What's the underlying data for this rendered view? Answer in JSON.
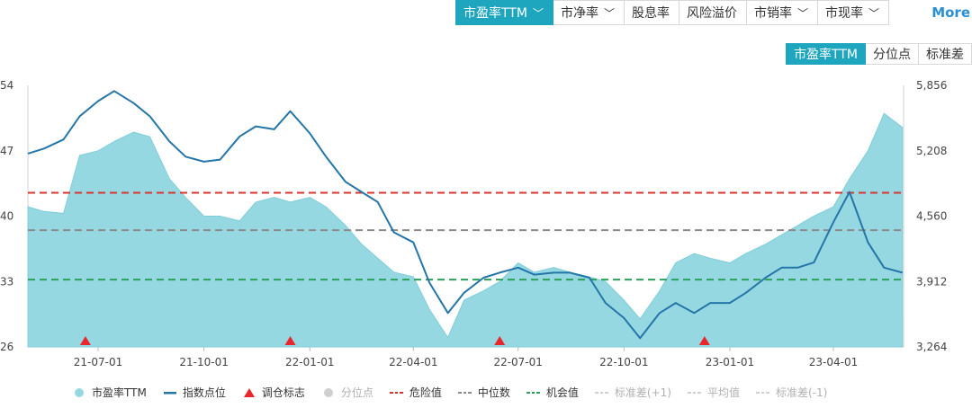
{
  "tabs": [
    {
      "label": "市盈率TTM",
      "active": true,
      "has_menu": true
    },
    {
      "label": "市净率",
      "active": false,
      "has_menu": true
    },
    {
      "label": "股息率",
      "active": false,
      "has_menu": false
    },
    {
      "label": "风险溢价",
      "active": false,
      "has_menu": false
    },
    {
      "label": "市销率",
      "active": false,
      "has_menu": true
    },
    {
      "label": "市现率",
      "active": false,
      "has_menu": true
    }
  ],
  "more_label": "More",
  "subtabs": [
    {
      "label": "市盈率TTM",
      "active": true
    },
    {
      "label": "分位点",
      "active": false
    },
    {
      "label": "标准差",
      "active": false
    }
  ],
  "colors": {
    "accent": "#1fa6bf",
    "area": "#96d8e1",
    "index_line": "#2475a8",
    "danger": "#d9352f",
    "median": "#8a8a8a",
    "opportunity": "#2aa05a",
    "marker": "#e8262b",
    "more_link": "#2b8fd6"
  },
  "legend": [
    {
      "label": "市盈率TTM",
      "symbol": "dot",
      "color": "#96d8e1",
      "dim": false
    },
    {
      "label": "指数点位",
      "symbol": "line",
      "color": "#2475a8",
      "dim": false
    },
    {
      "label": "调仓标志",
      "symbol": "triangle",
      "color": "#e8262b",
      "dim": false
    },
    {
      "label": "分位点",
      "symbol": "dot",
      "color": "#cfcfcf",
      "dim": true
    },
    {
      "label": "危险值",
      "symbol": "dash",
      "color": "#d9352f",
      "dim": false
    },
    {
      "label": "中位数",
      "symbol": "dash",
      "color": "#8a8a8a",
      "dim": false
    },
    {
      "label": "机会值",
      "symbol": "dash",
      "color": "#2aa05a",
      "dim": false
    },
    {
      "label": "标准差(+1)",
      "symbol": "dash",
      "color": "#cfcfcf",
      "dim": true
    },
    {
      "label": "平均值",
      "symbol": "dash",
      "color": "#cfcfcf",
      "dim": true
    },
    {
      "label": "标准差(-1)",
      "symbol": "dash",
      "color": "#cfcfcf",
      "dim": true
    }
  ],
  "chart_data": {
    "type": "line",
    "x_range": [
      "2021-05-01",
      "2023-06-01"
    ],
    "x_ticks": [
      "21-07-01",
      "21-10-01",
      "22-01-01",
      "22-04-01",
      "22-07-01",
      "22-10-01",
      "23-01-01",
      "23-04-01"
    ],
    "y_left": {
      "range": [
        26,
        54
      ],
      "ticks": [
        "26",
        "33",
        "40",
        "47",
        "54"
      ]
    },
    "y_right": {
      "range": [
        3264,
        5856
      ],
      "ticks": [
        "3,264",
        "3,912",
        "4,560",
        "5,208",
        "5,856"
      ]
    },
    "reference_lines": {
      "danger": 42.5,
      "median": 38.5,
      "opportunity": 33.2
    },
    "pe_ttm": {
      "name": "市盈率TTM",
      "x": [
        "2021-05-01",
        "2021-05-15",
        "2021-06-01",
        "2021-06-15",
        "2021-07-01",
        "2021-07-15",
        "2021-08-01",
        "2021-08-15",
        "2021-09-01",
        "2021-09-15",
        "2021-10-01",
        "2021-10-15",
        "2021-11-01",
        "2021-11-15",
        "2021-12-01",
        "2021-12-15",
        "2022-01-01",
        "2022-01-15",
        "2022-02-01",
        "2022-02-15",
        "2022-03-01",
        "2022-03-15",
        "2022-04-01",
        "2022-04-15",
        "2022-05-01",
        "2022-05-15",
        "2022-06-01",
        "2022-06-15",
        "2022-07-01",
        "2022-07-15",
        "2022-08-01",
        "2022-08-15",
        "2022-09-01",
        "2022-09-15",
        "2022-10-01",
        "2022-10-15",
        "2022-11-01",
        "2022-11-15",
        "2022-12-01",
        "2022-12-15",
        "2023-01-01",
        "2023-01-15",
        "2023-02-01",
        "2023-02-15",
        "2023-03-01",
        "2023-03-15",
        "2023-04-01",
        "2023-04-15",
        "2023-05-01",
        "2023-05-15",
        "2023-05-31"
      ],
      "values": [
        41,
        40.5,
        40.3,
        46.5,
        47,
        48,
        49,
        48.5,
        44,
        42,
        40,
        40,
        39.5,
        41.5,
        42,
        41.5,
        42,
        41,
        39,
        37,
        35.5,
        34,
        33.5,
        30,
        27,
        31,
        32,
        33,
        35,
        34,
        34.5,
        34,
        33.5,
        33,
        31,
        29,
        32,
        35,
        36,
        35.5,
        35,
        36,
        37,
        38,
        39,
        40,
        41,
        44,
        47,
        51,
        49.5
      ]
    },
    "index_points": {
      "name": "指数点位",
      "x": [
        "2021-05-01",
        "2021-05-15",
        "2021-06-01",
        "2021-06-15",
        "2021-07-01",
        "2021-07-15",
        "2021-08-01",
        "2021-08-15",
        "2021-09-01",
        "2021-09-15",
        "2021-10-01",
        "2021-10-15",
        "2021-11-01",
        "2021-11-15",
        "2021-12-01",
        "2021-12-15",
        "2022-01-01",
        "2022-01-15",
        "2022-02-01",
        "2022-02-15",
        "2022-03-01",
        "2022-03-15",
        "2022-04-01",
        "2022-04-15",
        "2022-05-01",
        "2022-05-15",
        "2022-06-01",
        "2022-06-15",
        "2022-07-01",
        "2022-07-15",
        "2022-08-01",
        "2022-08-15",
        "2022-09-01",
        "2022-09-15",
        "2022-10-01",
        "2022-10-15",
        "2022-11-01",
        "2022-11-15",
        "2022-12-01",
        "2022-12-15",
        "2023-01-01",
        "2023-01-15",
        "2023-02-01",
        "2023-02-15",
        "2023-03-01",
        "2023-03-15",
        "2023-04-01",
        "2023-04-15",
        "2023-05-01",
        "2023-05-15",
        "2023-05-31"
      ],
      "values": [
        5180,
        5230,
        5320,
        5550,
        5700,
        5800,
        5680,
        5550,
        5300,
        5150,
        5100,
        5120,
        5350,
        5450,
        5420,
        5600,
        5380,
        5150,
        4900,
        4800,
        4700,
        4400,
        4300,
        3900,
        3600,
        3800,
        3950,
        4000,
        4050,
        3980,
        4000,
        4000,
        3950,
        3700,
        3550,
        3350,
        3600,
        3700,
        3600,
        3700,
        3700,
        3800,
        3950,
        4050,
        4050,
        4100,
        4500,
        4800,
        4300,
        4050,
        4000
      ]
    },
    "rebalance_markers": {
      "name": "调仓标志",
      "x": [
        "2021-06-20",
        "2021-12-15",
        "2022-06-15",
        "2022-12-10"
      ]
    }
  }
}
